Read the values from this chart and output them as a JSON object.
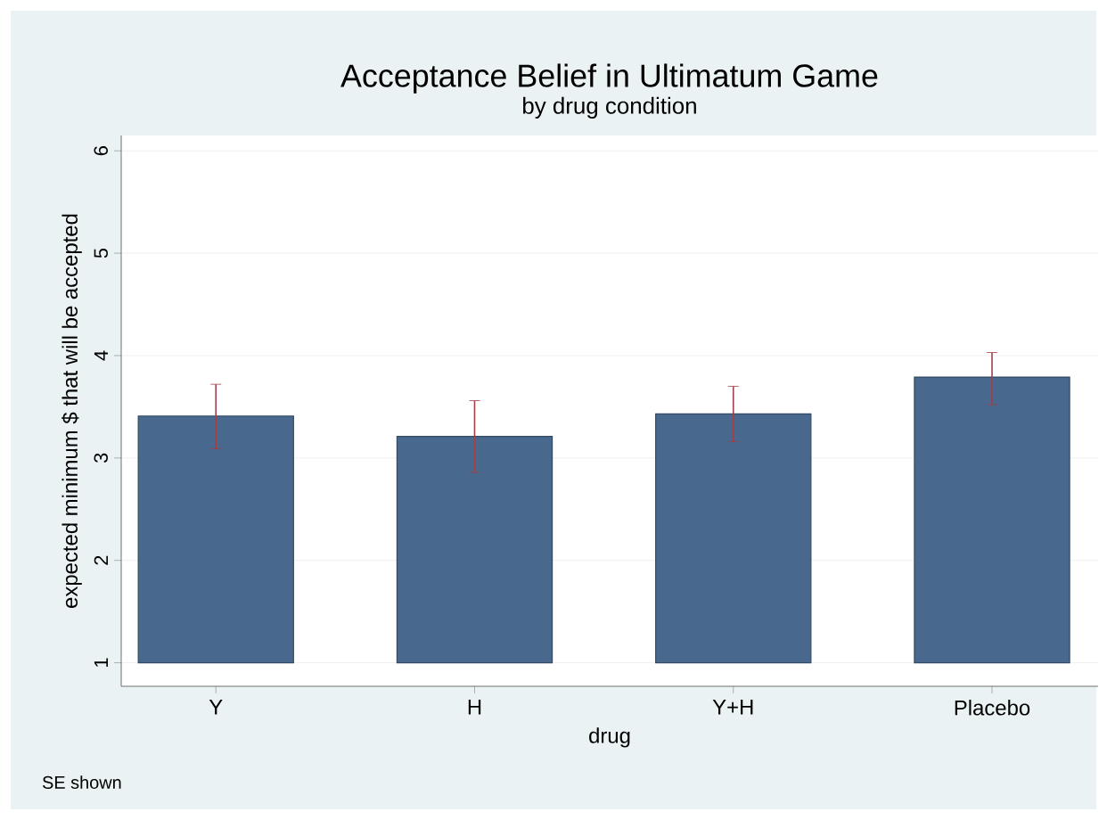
{
  "chart_data": {
    "type": "bar",
    "title": "Acceptance Belief in Ultimatum Game",
    "subtitle": "by drug condition",
    "xlabel": "drug",
    "ylabel": "expected minimum $ that will be accepted",
    "categories": [
      "Y",
      "H",
      "Y+H",
      "Placebo"
    ],
    "base": [
      1,
      1,
      1,
      1
    ],
    "values": [
      2.41,
      2.21,
      2.43,
      2.79
    ],
    "errors": [
      [
        3.09,
        3.72
      ],
      [
        2.86,
        3.56
      ],
      [
        3.16,
        3.7
      ],
      [
        3.52,
        4.03
      ]
    ],
    "color": "#48698d",
    "ylim": [
      0.77,
      6.15
    ],
    "yticks": [
      1,
      2,
      3,
      4,
      5,
      6
    ],
    "grid": "y",
    "annotations": [
      "SE shown"
    ]
  }
}
